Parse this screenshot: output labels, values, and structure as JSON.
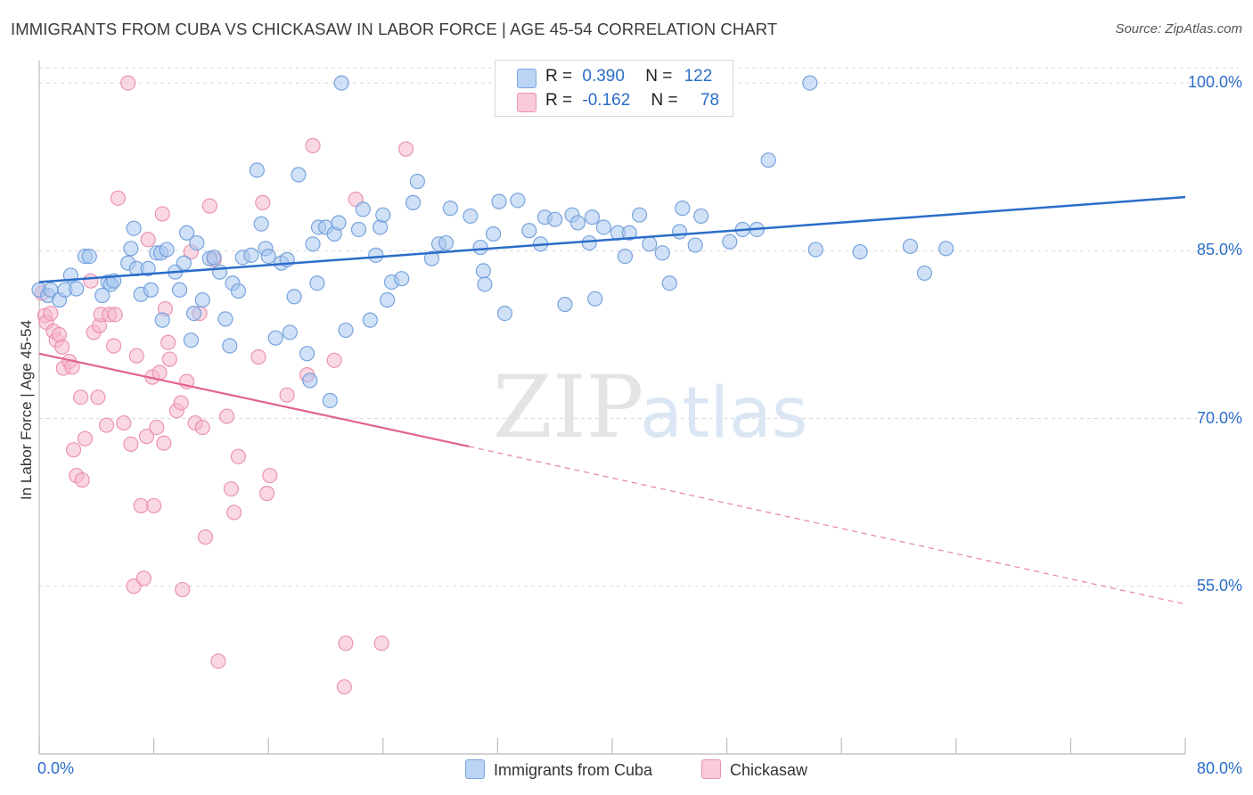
{
  "header": {
    "title": "IMMIGRANTS FROM CUBA VS CHICKASAW IN LABOR FORCE | AGE 45-54 CORRELATION CHART",
    "source": "Source: ZipAtlas.com"
  },
  "watermark": "ZIPatlas",
  "colors": {
    "blue": "#2a6dc9",
    "blue_fill": "#a9c8f0",
    "pink": "#e0638f",
    "pink_fill": "#f6b8cc",
    "tick_text": "#2a6dc9",
    "grid": "#d9d9d9"
  },
  "legend_top": [
    {
      "r_label": "R =",
      "r_value": "0.390",
      "n_label": "N =",
      "n_value": "122"
    },
    {
      "r_label": "R =",
      "r_value": "-0.162",
      "n_label": "N =",
      "n_value": "78"
    }
  ],
  "chart_data": {
    "type": "scatter",
    "title": "IMMIGRANTS FROM CUBA VS CHICKASAW IN LABOR FORCE | AGE 45-54 CORRELATION CHART",
    "xlabel": "",
    "ylabel": "In Labor Force | Age 45-54",
    "xlim": [
      0,
      80
    ],
    "ylim": [
      40,
      102
    ],
    "x_tick_labels": [
      "0.0%",
      "80.0%"
    ],
    "y_ticks": [
      55,
      70,
      85,
      100
    ],
    "y_tick_labels": [
      "55.0%",
      "70.0%",
      "85.0%",
      "100.0%"
    ],
    "grid": true,
    "legend_position": "top-center and bottom",
    "series": [
      {
        "name": "Immigrants from Cuba",
        "color": "blue",
        "trend": {
          "x0": 0,
          "y0": 82.2,
          "x1": 80,
          "y1": 89.8
        },
        "points": [
          [
            0,
            81.5
          ],
          [
            0.6,
            81
          ],
          [
            0.8,
            81.5
          ],
          [
            1.4,
            80.6
          ],
          [
            1.8,
            81.5
          ],
          [
            2.2,
            82.8
          ],
          [
            2.6,
            81.6
          ],
          [
            3.2,
            84.5
          ],
          [
            3.5,
            84.5
          ],
          [
            4.4,
            81
          ],
          [
            4.8,
            82.2
          ],
          [
            5.0,
            82
          ],
          [
            5.2,
            82.3
          ],
          [
            6.2,
            83.9
          ],
          [
            6.4,
            85.2
          ],
          [
            6.6,
            87
          ],
          [
            6.8,
            83.4
          ],
          [
            7.1,
            81.1
          ],
          [
            7.6,
            83.4
          ],
          [
            7.8,
            81.5
          ],
          [
            8.2,
            84.8
          ],
          [
            8.5,
            84.8
          ],
          [
            8.6,
            78.8
          ],
          [
            8.9,
            85.1
          ],
          [
            9.5,
            83.1
          ],
          [
            9.8,
            81.5
          ],
          [
            10.1,
            83.9
          ],
          [
            10.3,
            86.6
          ],
          [
            10.6,
            77
          ],
          [
            10.8,
            79.4
          ],
          [
            11,
            85.7
          ],
          [
            11.4,
            80.6
          ],
          [
            11.9,
            84.3
          ],
          [
            12.2,
            84.4
          ],
          [
            12.6,
            83.1
          ],
          [
            13,
            78.9
          ],
          [
            13.3,
            76.5
          ],
          [
            13.5,
            82.1
          ],
          [
            13.9,
            81.4
          ],
          [
            14.2,
            84.4
          ],
          [
            14.8,
            84.6
          ],
          [
            15.2,
            92.2
          ],
          [
            15.5,
            87.4
          ],
          [
            15.8,
            85.2
          ],
          [
            16.0,
            84.5
          ],
          [
            16.5,
            77.2
          ],
          [
            16.9,
            83.9
          ],
          [
            17.3,
            84.2
          ],
          [
            17.5,
            77.7
          ],
          [
            17.8,
            80.9
          ],
          [
            18.1,
            91.8
          ],
          [
            18.7,
            75.8
          ],
          [
            18.9,
            73.4
          ],
          [
            19.1,
            85.6
          ],
          [
            19.4,
            82.1
          ],
          [
            19.5,
            87.1
          ],
          [
            20.0,
            87.1
          ],
          [
            20.3,
            71.6
          ],
          [
            20.6,
            86.5
          ],
          [
            20.9,
            87.5
          ],
          [
            21.1,
            100
          ],
          [
            21.4,
            77.9
          ],
          [
            22.3,
            86.9
          ],
          [
            22.6,
            88.7
          ],
          [
            23.1,
            78.8
          ],
          [
            23.5,
            84.6
          ],
          [
            23.8,
            87.1
          ],
          [
            24.0,
            88.2
          ],
          [
            24.3,
            80.6
          ],
          [
            24.6,
            82.2
          ],
          [
            25.3,
            82.5
          ],
          [
            26.1,
            89.3
          ],
          [
            26.4,
            91.2
          ],
          [
            27.4,
            84.3
          ],
          [
            27.9,
            85.6
          ],
          [
            28.4,
            85.7
          ],
          [
            28.7,
            88.8
          ],
          [
            30.1,
            88.1
          ],
          [
            30.8,
            85.3
          ],
          [
            31,
            83.2
          ],
          [
            31.1,
            82
          ],
          [
            31.7,
            86.5
          ],
          [
            32.1,
            89.4
          ],
          [
            32.5,
            79.4
          ],
          [
            33.4,
            89.5
          ],
          [
            34.2,
            86.8
          ],
          [
            35.0,
            85.6
          ],
          [
            35.3,
            88
          ],
          [
            36.0,
            87.8
          ],
          [
            36.7,
            80.2
          ],
          [
            37.2,
            88.2
          ],
          [
            37.6,
            87.5
          ],
          [
            38.4,
            85.7
          ],
          [
            38.6,
            88
          ],
          [
            38.8,
            80.7
          ],
          [
            39.4,
            87.1
          ],
          [
            40.4,
            86.6
          ],
          [
            40.9,
            84.5
          ],
          [
            41.2,
            86.6
          ],
          [
            41.9,
            88.2
          ],
          [
            42.6,
            85.6
          ],
          [
            43.5,
            84.8
          ],
          [
            44.0,
            82.1
          ],
          [
            44.7,
            86.7
          ],
          [
            44.9,
            88.8
          ],
          [
            45.8,
            85.5
          ],
          [
            46.2,
            88.1
          ],
          [
            48.2,
            85.8
          ],
          [
            49.1,
            86.9
          ],
          [
            50.1,
            86.9
          ],
          [
            50.9,
            93.1
          ],
          [
            53.8,
            100
          ],
          [
            54.2,
            85.1
          ],
          [
            57.3,
            84.9
          ],
          [
            60.8,
            85.4
          ],
          [
            61.8,
            83
          ],
          [
            63.3,
            85.2
          ]
        ]
      },
      {
        "name": "Chickasaw",
        "color": "pink",
        "trend": {
          "x0": 0,
          "y0": 75.8,
          "x1": 30,
          "y1": 67.5
        },
        "trend_dashed_to": {
          "x": 80,
          "y": 53.4
        },
        "points": [
          [
            0.2,
            81.2
          ],
          [
            0.4,
            79.2
          ],
          [
            0.5,
            78.6
          ],
          [
            0.8,
            79.4
          ],
          [
            1.0,
            77.8
          ],
          [
            1.2,
            77
          ],
          [
            1.4,
            77.5
          ],
          [
            1.6,
            76.4
          ],
          [
            1.7,
            74.5
          ],
          [
            2.1,
            75.1
          ],
          [
            2.3,
            74.6
          ],
          [
            2.4,
            67.2
          ],
          [
            2.6,
            64.9
          ],
          [
            2.9,
            71.9
          ],
          [
            3.0,
            64.5
          ],
          [
            3.2,
            68.2
          ],
          [
            3.6,
            82.3
          ],
          [
            3.8,
            77.7
          ],
          [
            4.1,
            71.9
          ],
          [
            4.2,
            78.3
          ],
          [
            4.3,
            79.3
          ],
          [
            4.7,
            69.4
          ],
          [
            4.9,
            79.3
          ],
          [
            5.2,
            76.5
          ],
          [
            5.3,
            79.3
          ],
          [
            5.5,
            89.7
          ],
          [
            5.9,
            69.6
          ],
          [
            6.2,
            100
          ],
          [
            6.4,
            67.7
          ],
          [
            6.6,
            55
          ],
          [
            6.8,
            75.6
          ],
          [
            7.1,
            62.2
          ],
          [
            7.3,
            55.7
          ],
          [
            7.5,
            68.4
          ],
          [
            7.6,
            86
          ],
          [
            7.9,
            73.7
          ],
          [
            8.0,
            62.2
          ],
          [
            8.2,
            69.2
          ],
          [
            8.4,
            74.1
          ],
          [
            8.6,
            88.3
          ],
          [
            8.7,
            67.8
          ],
          [
            8.8,
            79.8
          ],
          [
            9.0,
            76.8
          ],
          [
            9.1,
            75.3
          ],
          [
            9.6,
            70.7
          ],
          [
            9.9,
            71.4
          ],
          [
            10.0,
            54.7
          ],
          [
            10.3,
            73.3
          ],
          [
            10.6,
            84.9
          ],
          [
            10.9,
            69.6
          ],
          [
            11.2,
            79.4
          ],
          [
            11.4,
            69.2
          ],
          [
            11.6,
            59.4
          ],
          [
            11.9,
            89
          ],
          [
            12.2,
            84.2
          ],
          [
            12.5,
            48.3
          ],
          [
            13.1,
            70.2
          ],
          [
            13.4,
            63.7
          ],
          [
            13.6,
            61.6
          ],
          [
            13.9,
            66.6
          ],
          [
            15.3,
            75.5
          ],
          [
            15.6,
            89.3
          ],
          [
            15.9,
            63.3
          ],
          [
            16.1,
            64.9
          ],
          [
            17.3,
            72.1
          ],
          [
            18.7,
            73.9
          ],
          [
            19.1,
            94.4
          ],
          [
            20.6,
            75.2
          ],
          [
            21.3,
            46
          ],
          [
            21.4,
            49.9
          ],
          [
            22.1,
            89.6
          ],
          [
            23.9,
            49.9
          ],
          [
            25.6,
            94.1
          ]
        ]
      }
    ]
  },
  "legend_bottom": [
    {
      "label": "Immigrants from Cuba",
      "color": "blue"
    },
    {
      "label": "Chickasaw",
      "color": "pink"
    }
  ]
}
